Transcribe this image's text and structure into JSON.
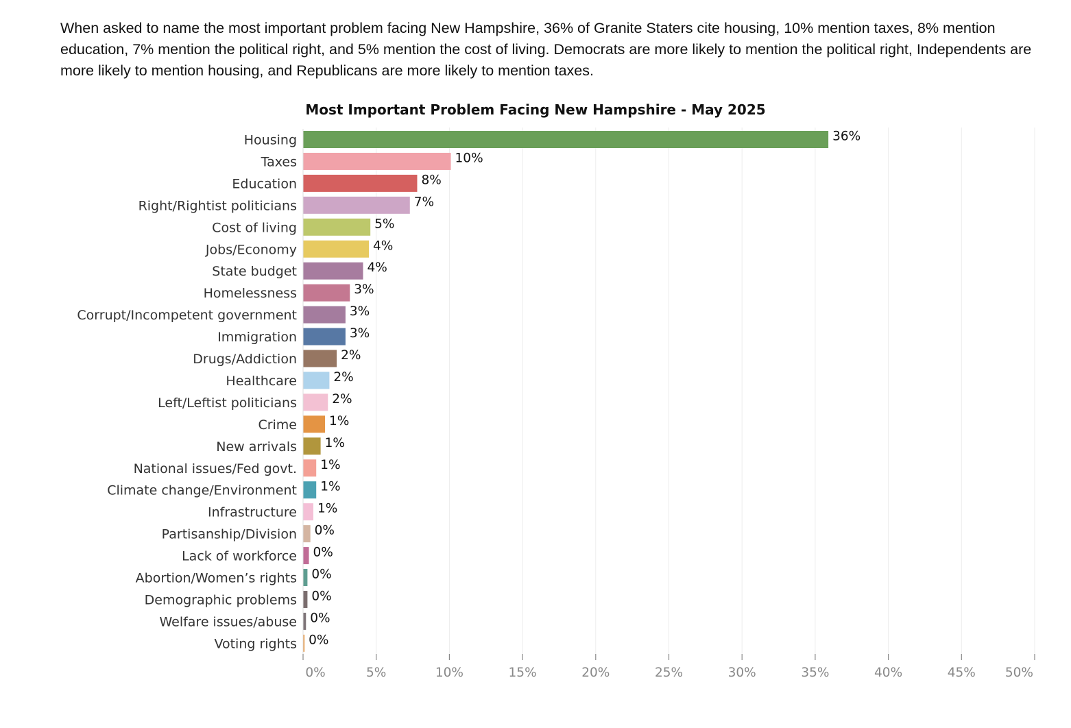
{
  "intro_text": "When asked to name the most important problem facing New Hampshire, 36% of Granite Staters cite housing, 10% mention taxes, 8% mention education, 7% mention the political right, and 5% mention the cost of living. Democrats are more likely to mention the political right, Independents are more likely to mention housing, and Republicans are more likely to mention taxes.",
  "chart_data": {
    "type": "bar",
    "orientation": "horizontal",
    "title": "Most Important Problem Facing New Hampshire - May 2025",
    "xlabel": "",
    "ylabel": "",
    "xlim": [
      0,
      50
    ],
    "grid": true,
    "legend": "none",
    "x_ticks": [
      "0%",
      "5%",
      "10%",
      "15%",
      "20%",
      "25%",
      "30%",
      "35%",
      "40%",
      "45%",
      "50%"
    ],
    "categories": [
      "Housing",
      "Taxes",
      "Education",
      "Right/Rightist politicians",
      "Cost of living",
      "Jobs/Economy",
      "State budget",
      "Homelessness",
      "Corrupt/Incompetent government",
      "Immigration",
      "Drugs/Addiction",
      "Healthcare",
      "Left/Leftist politicians",
      "Crime",
      "New arrivals",
      "National issues/Fed govt.",
      "Climate change/Environment",
      "Infrastructure",
      "Partisanship/Division",
      "Lack of workforce",
      "Abortion/Women’s rights",
      "Demographic problems",
      "Welfare issues/abuse",
      "Voting rights"
    ],
    "values": [
      35.9,
      10.1,
      7.8,
      7.3,
      4.6,
      4.5,
      4.1,
      3.2,
      2.9,
      2.9,
      2.3,
      1.8,
      1.7,
      1.5,
      1.2,
      0.9,
      0.9,
      0.7,
      0.5,
      0.4,
      0.3,
      0.3,
      0.2,
      0.1
    ],
    "value_labels": [
      "36%",
      "10%",
      "8%",
      "7%",
      "5%",
      "4%",
      "4%",
      "3%",
      "3%",
      "3%",
      "2%",
      "2%",
      "2%",
      "1%",
      "1%",
      "1%",
      "1%",
      "1%",
      "0%",
      "0%",
      "0%",
      "0%",
      "0%",
      "0%"
    ],
    "colors": [
      "#6a9f58",
      "#f1a2a9",
      "#d5605f",
      "#cda6c6",
      "#bdc86b",
      "#e7ca60",
      "#a77c9f",
      "#c47891",
      "#a47c9e",
      "#5778a4",
      "#967662",
      "#aed3ec",
      "#f3c1d3",
      "#e49444",
      "#b1963d",
      "#f4a095",
      "#4ba1b2",
      "#f4bfd6",
      "#d4b5a2",
      "#c06c96",
      "#5e9d90",
      "#7a6d6e",
      "#7e7578",
      "#e89a4a"
    ]
  }
}
